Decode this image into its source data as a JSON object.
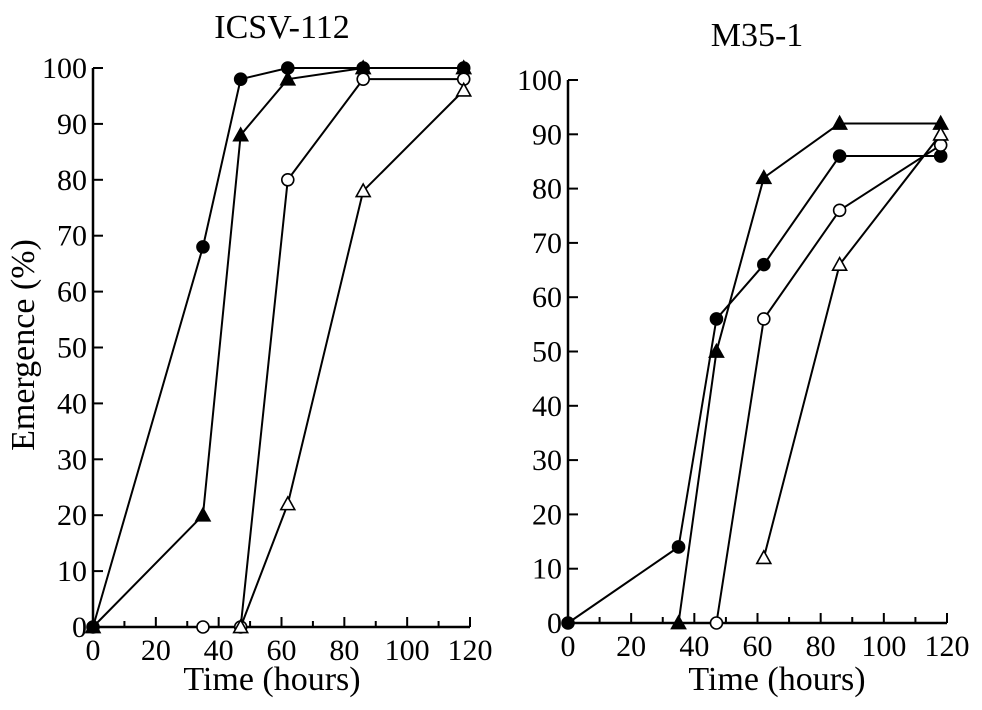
{
  "chart_data": [
    {
      "type": "line",
      "title": "ICSV-112",
      "xlabel": "Time (hours)",
      "ylabel": "Emergence (%)",
      "xlim": [
        0,
        120
      ],
      "ylim": [
        0,
        100
      ],
      "x_ticks": [
        0,
        20,
        40,
        60,
        80,
        100,
        120
      ],
      "y_ticks": [
        0,
        10,
        20,
        30,
        40,
        50,
        60,
        70,
        80,
        90,
        100
      ],
      "x_tick_labels": [
        "0",
        "20",
        "40",
        "60",
        "80",
        "100",
        "120"
      ],
      "y_tick_labels": [
        "0",
        "10",
        "20",
        "30",
        "40",
        "50",
        "60",
        "70",
        "80",
        "90",
        "100"
      ],
      "series": [
        {
          "marker": "filled-circle",
          "x": [
            0,
            35,
            47,
            62,
            86,
            118
          ],
          "y": [
            0,
            68,
            98,
            100,
            100,
            100
          ]
        },
        {
          "marker": "filled-triangle",
          "x": [
            0,
            35,
            47,
            62,
            86,
            118
          ],
          "y": [
            0,
            20,
            88,
            98,
            100,
            100
          ]
        },
        {
          "marker": "open-circle",
          "x": [
            35,
            47,
            62,
            86,
            118
          ],
          "y": [
            0,
            0,
            80,
            98,
            98
          ]
        },
        {
          "marker": "open-triangle",
          "x": [
            47,
            62,
            86,
            118
          ],
          "y": [
            0,
            22,
            78,
            96
          ]
        }
      ]
    },
    {
      "type": "line",
      "title": "M35-1",
      "xlabel": "Time (hours)",
      "ylabel": "",
      "xlim": [
        0,
        120
      ],
      "ylim": [
        0,
        100
      ],
      "x_ticks": [
        0,
        20,
        40,
        60,
        80,
        100,
        120
      ],
      "y_ticks": [
        0,
        10,
        20,
        30,
        40,
        50,
        60,
        70,
        80,
        90,
        100
      ],
      "x_tick_labels": [
        "0",
        "20",
        "40",
        "60",
        "80",
        "100",
        "120"
      ],
      "y_tick_labels": [
        "0",
        "10",
        "20",
        "30",
        "40",
        "50",
        "60",
        "70",
        "80",
        "90",
        "100"
      ],
      "series": [
        {
          "marker": "filled-circle",
          "x": [
            0,
            35,
            47,
            62,
            86,
            118
          ],
          "y": [
            0,
            14,
            56,
            66,
            86,
            86
          ]
        },
        {
          "marker": "filled-triangle",
          "x": [
            35,
            47,
            62,
            86,
            118
          ],
          "y": [
            0,
            50,
            82,
            92,
            92
          ]
        },
        {
          "marker": "open-circle",
          "x": [
            47,
            62,
            86,
            118
          ],
          "y": [
            0,
            56,
            76,
            88
          ]
        },
        {
          "marker": "open-triangle",
          "x": [
            62,
            86,
            118
          ],
          "y": [
            12,
            66,
            90
          ]
        }
      ]
    }
  ]
}
